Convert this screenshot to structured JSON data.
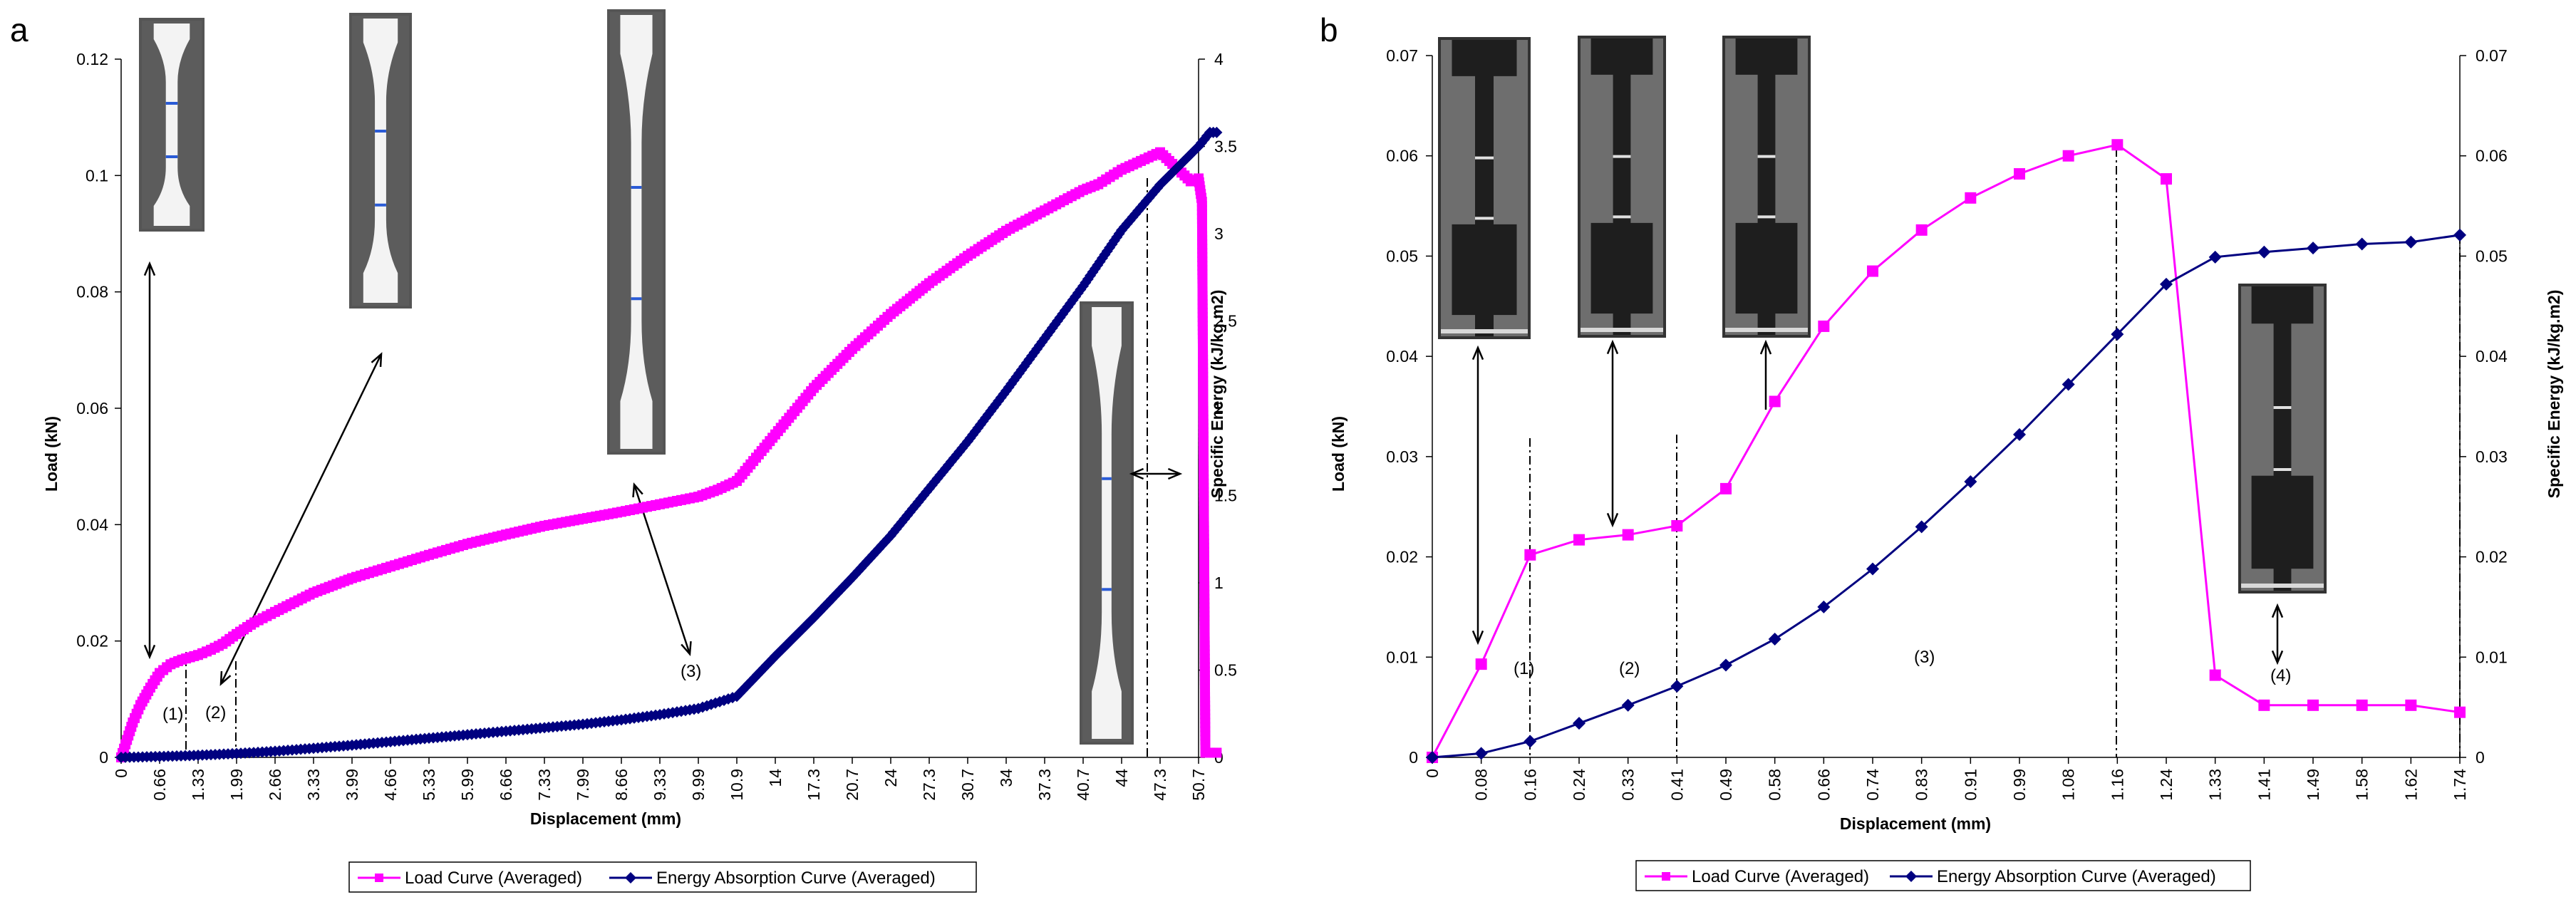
{
  "chart_data": [
    {
      "panel": "a",
      "type": "line",
      "xlabel": "Displacement (mm)",
      "ylabel": "Load (kN)",
      "y2label": "Specific Energy (kJ/kg.m2)",
      "xticks": [
        "0",
        "0.66",
        "1.33",
        "1.99",
        "2.66",
        "3.33",
        "3.99",
        "4.66",
        "5.33",
        "5.99",
        "6.66",
        "7.33",
        "7.99",
        "8.66",
        "9.33",
        "9.99",
        "10.9",
        "14",
        "17.3",
        "20.7",
        "24",
        "27.3",
        "30.7",
        "34",
        "37.3",
        "40.7",
        "44",
        "47.3",
        "50.7"
      ],
      "yticks": [
        "0",
        "0.02",
        "0.04",
        "0.06",
        "0.08",
        "0.1",
        "0.12"
      ],
      "y2ticks": [
        "0",
        "0.5",
        "1",
        "1.5",
        "2",
        "2.5",
        "3",
        "3.5",
        "4"
      ],
      "ylim": [
        0,
        0.12
      ],
      "y2lim": [
        0,
        4
      ],
      "series": [
        {
          "name": "Load Curve (Averaged)",
          "axis": "left",
          "color": "#ff00ff",
          "marker": "square",
          "x": [
            0,
            0.1,
            0.2,
            0.33,
            0.5,
            0.66,
            0.85,
            1.05,
            1.33,
            1.55,
            1.75,
            1.99,
            2.3,
            2.66,
            3.33,
            3.99,
            4.66,
            5.33,
            5.99,
            6.66,
            7.33,
            7.99,
            8.66,
            9.33,
            9.99,
            10.45,
            10.9,
            14,
            17.3,
            20.7,
            24,
            27.3,
            30.7,
            34,
            37.3,
            40.7,
            42,
            44,
            47.3,
            50.0,
            50.7,
            51.0,
            51.3,
            51.7,
            52.0,
            52.3
          ],
          "values": [
            0,
            0.003,
            0.006,
            0.009,
            0.012,
            0.0145,
            0.016,
            0.0168,
            0.0176,
            0.0185,
            0.0195,
            0.0212,
            0.0232,
            0.025,
            0.0283,
            0.0308,
            0.0328,
            0.0348,
            0.0367,
            0.0383,
            0.0398,
            0.041,
            0.0422,
            0.0435,
            0.0448,
            0.046,
            0.0475,
            0.0555,
            0.0635,
            0.0702,
            0.0762,
            0.0815,
            0.0862,
            0.0905,
            0.094,
            0.0975,
            0.0985,
            0.101,
            0.104,
            0.099,
            0.0995,
            0.0955,
            0.0008,
            0.0008,
            0.0008,
            0.0008
          ]
        },
        {
          "name": "Energy Absorption Curve (Averaged)",
          "axis": "right",
          "color": "#000080",
          "marker": "diamond",
          "x": [
            0,
            0.66,
            1.33,
            1.99,
            2.66,
            3.33,
            3.99,
            4.66,
            5.33,
            5.99,
            6.66,
            7.33,
            7.99,
            8.66,
            9.33,
            9.99,
            10.9,
            14,
            17.3,
            20.7,
            24,
            27.3,
            30.7,
            34,
            37.3,
            40.7,
            44,
            47.3,
            50.7,
            51.7,
            52.3
          ],
          "values": [
            0,
            0.005,
            0.012,
            0.022,
            0.035,
            0.052,
            0.07,
            0.09,
            0.11,
            0.13,
            0.15,
            0.17,
            0.19,
            0.215,
            0.245,
            0.28,
            0.35,
            0.58,
            0.8,
            1.03,
            1.27,
            1.54,
            1.81,
            2.1,
            2.4,
            2.7,
            3.02,
            3.28,
            3.5,
            3.58,
            3.58
          ]
        }
      ],
      "region_labels": [
        "(1)",
        "(2)",
        "(3)"
      ]
    },
    {
      "panel": "b",
      "type": "line",
      "xlabel": "Displacement (mm)",
      "ylabel": "Load (kN)",
      "y2label": "Specific Energy (kJ/kg.m2)",
      "xticks": [
        "0",
        "0.08",
        "0.16",
        "0.24",
        "0.33",
        "0.41",
        "0.49",
        "0.58",
        "0.66",
        "0.74",
        "0.83",
        "0.91",
        "0.99",
        "1.08",
        "1.16",
        "1.24",
        "1.33",
        "1.41",
        "1.49",
        "1.58",
        "1.62",
        "1.74"
      ],
      "yticks": [
        "0",
        "0.01",
        "0.02",
        "0.03",
        "0.04",
        "0.05",
        "0.06",
        "0.07"
      ],
      "y2ticks": [
        "0",
        "0.01",
        "0.02",
        "0.03",
        "0.04",
        "0.05",
        "0.06",
        "0.07"
      ],
      "ylim": [
        0,
        0.07
      ],
      "y2lim": [
        0,
        0.07
      ],
      "series": [
        {
          "name": "Load Curve (Averaged)",
          "axis": "left",
          "color": "#ff00ff",
          "marker": "square",
          "x": [
            0,
            0.08,
            0.16,
            0.24,
            0.33,
            0.41,
            0.49,
            0.58,
            0.66,
            0.74,
            0.83,
            0.91,
            0.99,
            1.08,
            1.16,
            1.24,
            1.33,
            1.41,
            1.49,
            1.58,
            1.62,
            1.74
          ],
          "values": [
            0,
            0.0093,
            0.0202,
            0.0217,
            0.0222,
            0.0231,
            0.0268,
            0.0355,
            0.043,
            0.0485,
            0.0526,
            0.0558,
            0.0582,
            0.06,
            0.0611,
            0.0577,
            0.0082,
            0.0052,
            0.0052,
            0.0052,
            0.0052,
            0.0045
          ]
        },
        {
          "name": "Energy Absorption Curve (Averaged)",
          "axis": "right",
          "color": "#000080",
          "marker": "diamond",
          "x": [
            0,
            0.08,
            0.16,
            0.24,
            0.33,
            0.41,
            0.49,
            0.58,
            0.66,
            0.74,
            0.83,
            0.91,
            0.99,
            1.08,
            1.16,
            1.24,
            1.33,
            1.41,
            1.49,
            1.58,
            1.62,
            1.74
          ],
          "values": [
            0,
            0.0004,
            0.0016,
            0.0034,
            0.0052,
            0.0071,
            0.0092,
            0.0118,
            0.015,
            0.0188,
            0.023,
            0.0275,
            0.0322,
            0.0372,
            0.0422,
            0.0472,
            0.0499,
            0.0504,
            0.0508,
            0.0512,
            0.0514,
            0.0521
          ]
        }
      ],
      "region_labels": [
        "(1)",
        "(2)",
        "(3)",
        "(4)"
      ]
    }
  ],
  "panels": [
    {
      "letter": "a"
    },
    {
      "letter": "b"
    }
  ],
  "legend": {
    "load_label": "Load Curve (Averaged)",
    "energy_label": "Energy Absorption Curve (Averaged)"
  },
  "colors": {
    "load": "#ff00ff",
    "energy": "#000080",
    "photo_bg": "#6b6b6b",
    "photo_dark": "#2b2b2b"
  }
}
